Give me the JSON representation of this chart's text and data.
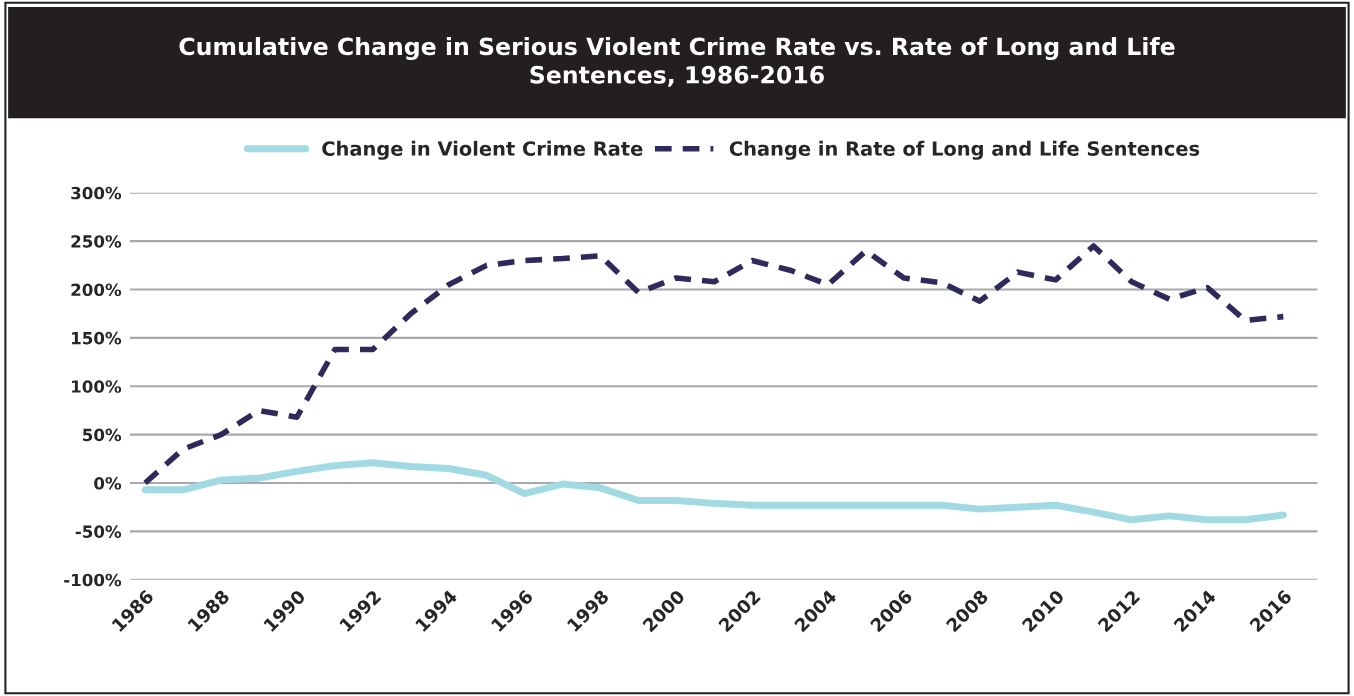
{
  "chart_data": {
    "type": "line",
    "title": "Cumulative Change in Serious Violent Crime Rate vs. Rate of Long and Life\nSentences, 1986-2016",
    "x": [
      1986,
      1987,
      1988,
      1989,
      1990,
      1991,
      1992,
      1993,
      1994,
      1995,
      1996,
      1997,
      1998,
      1999,
      2000,
      2001,
      2002,
      2003,
      2004,
      2005,
      2006,
      2007,
      2008,
      2009,
      2010,
      2011,
      2012,
      2013,
      2014,
      2015,
      2016
    ],
    "series": [
      {
        "name": "Change in Violent Crime Rate",
        "color": "#a1dae2",
        "line_style": "solid",
        "values": [
          -7,
          -7,
          3,
          5,
          12,
          18,
          21,
          17,
          15,
          8,
          -11,
          -1,
          -5,
          -18,
          -18,
          -21,
          -23,
          -23,
          -23,
          -23,
          -23,
          -23,
          -27,
          -25,
          -23,
          -30,
          -38,
          -34,
          -38,
          -38,
          -33
        ]
      },
      {
        "name": "Change in Rate of Long and Life Sentences",
        "color": "#2e2a5c",
        "line_style": "dashed",
        "values": [
          0,
          35,
          50,
          75,
          68,
          138,
          138,
          175,
          205,
          225,
          230,
          232,
          235,
          197,
          212,
          208,
          230,
          220,
          205,
          240,
          212,
          207,
          188,
          218,
          210,
          245,
          208,
          190,
          202,
          168,
          172
        ]
      }
    ],
    "xlim": [
      1985.6,
      2016.9
    ],
    "xticks": [
      1986,
      1988,
      1990,
      1992,
      1994,
      1996,
      1998,
      2000,
      2002,
      2004,
      2006,
      2008,
      2010,
      2012,
      2014,
      2016
    ],
    "ylim": [
      -100,
      300
    ],
    "yticks": [
      {
        "value": -100,
        "label": "-100%"
      },
      {
        "value": -50,
        "label": "-50%"
      },
      {
        "value": 0,
        "label": "0%"
      },
      {
        "value": 50,
        "label": "50%"
      },
      {
        "value": 100,
        "label": "100%"
      },
      {
        "value": 150,
        "label": "150%"
      },
      {
        "value": 200,
        "label": "200%"
      },
      {
        "value": 250,
        "label": "250%"
      },
      {
        "value": 300,
        "label": "300%"
      }
    ],
    "grid": "y",
    "legend": "top",
    "marker": "none"
  }
}
